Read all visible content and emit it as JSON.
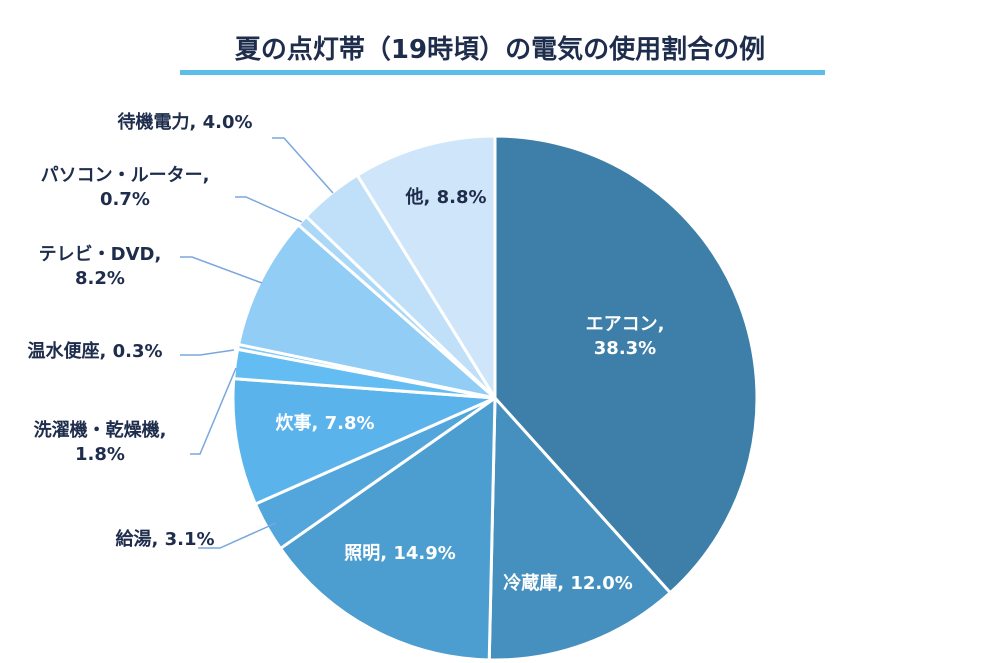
{
  "chart_data": {
    "type": "pie",
    "title": "夏の点灯帯（19時頃）の電気の使用割合の例",
    "slices": [
      {
        "label": "エアコン",
        "value": 38.3,
        "value_text": "38.3%",
        "color": "#3d7fa8"
      },
      {
        "label": "冷蔵庫",
        "value": 12.0,
        "value_text": "12.0%",
        "color": "#4690bf"
      },
      {
        "label": "照明",
        "value": 14.9,
        "value_text": "14.9%",
        "color": "#4c9dd0"
      },
      {
        "label": "給湯",
        "value": 3.1,
        "value_text": "3.1%",
        "color": "#52a6dc"
      },
      {
        "label": "炊事",
        "value": 7.8,
        "value_text": "7.8%",
        "color": "#5bb3ec"
      },
      {
        "label": "洗濯機・乾燥機",
        "value": 1.8,
        "value_text": "1.8%",
        "color": "#63bdf3"
      },
      {
        "label": "温水便座",
        "value": 0.3,
        "value_text": "0.3%",
        "color": "#7cc7f5"
      },
      {
        "label": "テレビ・DVD",
        "value": 8.2,
        "value_text": "8.2%",
        "color": "#92cdf5"
      },
      {
        "label": "パソコン・ルーター",
        "value": 0.7,
        "value_text": "0.7%",
        "color": "#acd8f7"
      },
      {
        "label": "待機電力",
        "value": 4.0,
        "value_text": "4.0%",
        "color": "#bfe0f8"
      },
      {
        "label": "他",
        "value": 8.8,
        "value_text": "8.8%",
        "color": "#cfe6fa"
      }
    ],
    "title_underline_color": "#5bbde8",
    "leader_color": "#7aa7dd",
    "start_angle": "12 o'clock",
    "direction": "clockwise"
  }
}
